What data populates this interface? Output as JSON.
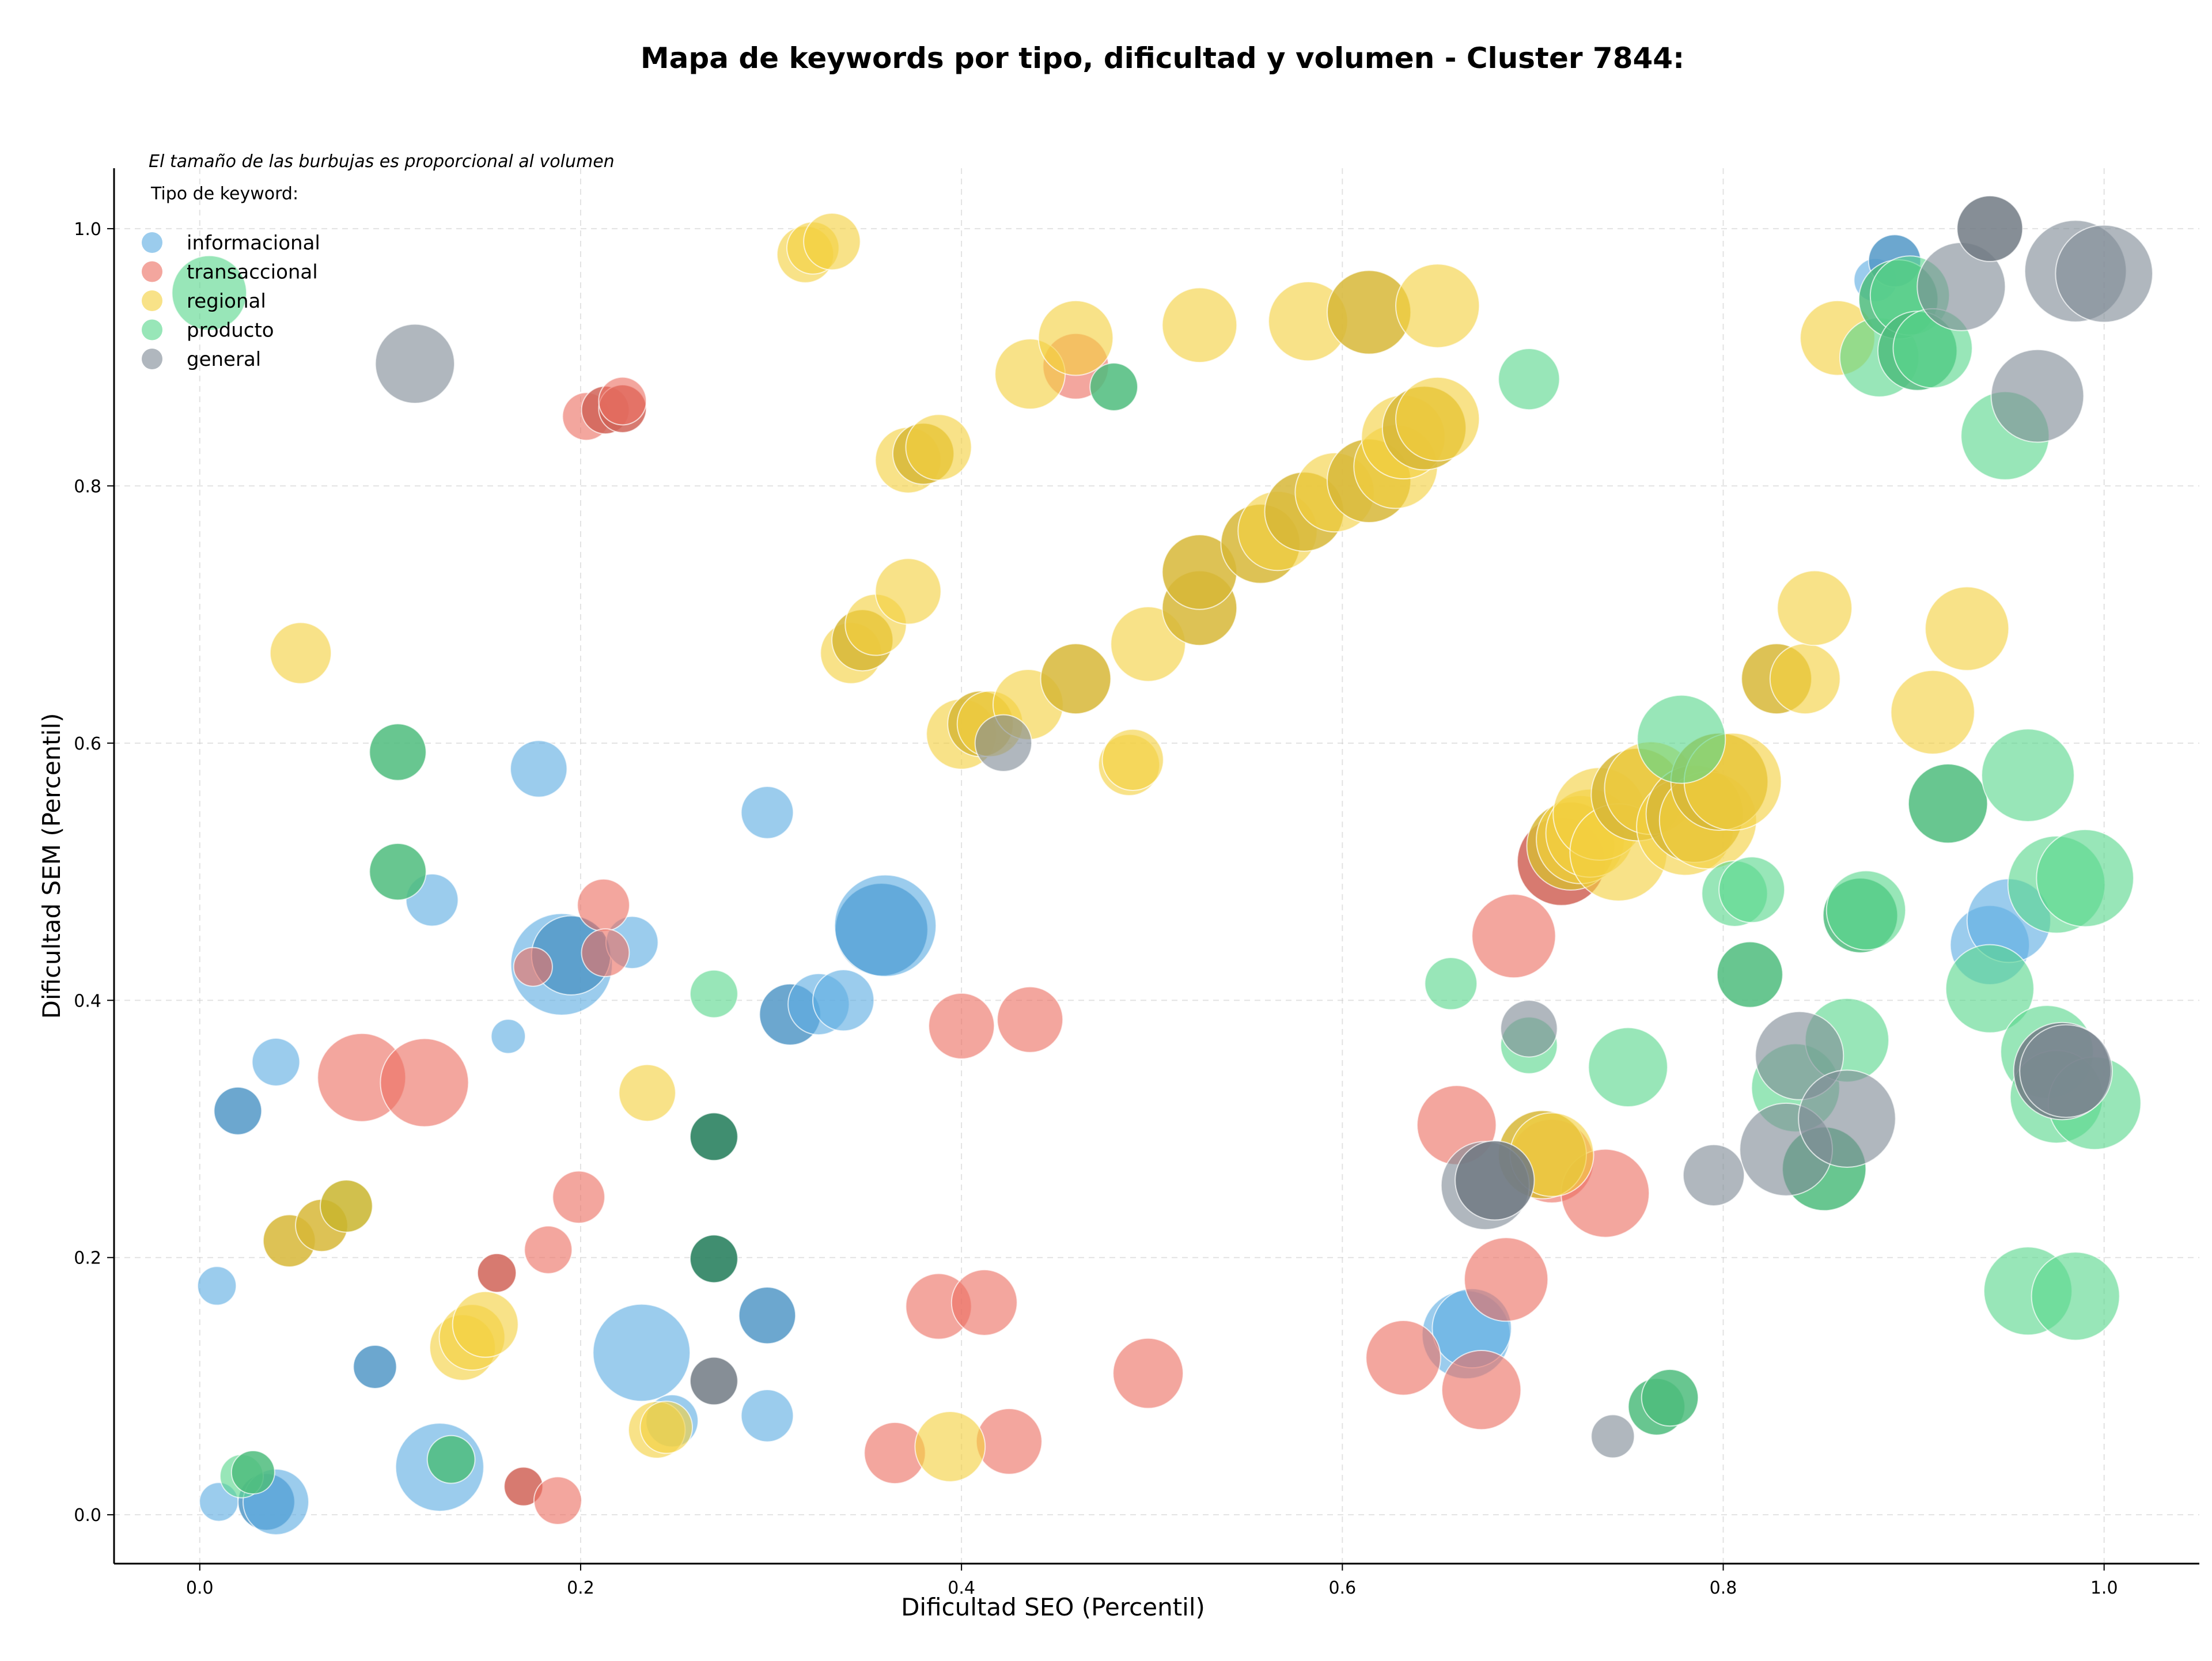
{
  "chart_data": {
    "type": "scatter",
    "title": "Mapa de keywords por tipo, dificultad y volumen - Cluster 7844:",
    "xlabel": "Dificultad SEO (Percentil)",
    "ylabel": "Dificultad SEM (Percentil)",
    "xlim": [
      -0.045,
      1.05
    ],
    "ylim": [
      -0.038,
      1.047
    ],
    "xticks": [
      "0.0",
      "0.2",
      "0.4",
      "0.6",
      "0.8",
      "1.0"
    ],
    "yticks": [
      "0.0",
      "0.2",
      "0.4",
      "0.6",
      "0.8",
      "1.0"
    ],
    "grid": true,
    "legend_position": "top-left",
    "note": "El tamaño de las burbujas es proporcional al volumen",
    "legend_title": "Tipo de keyword:",
    "series": [
      {
        "name": "informacional",
        "color": "#5dade2",
        "points": [
          {
            "x": 0.01,
            "y": 0.01,
            "s": 0.2
          },
          {
            "x": 0.009,
            "y": 0.178,
            "s": 0.2
          },
          {
            "x": 0.02,
            "y": 0.314,
            "s": 0.3,
            "dark": true
          },
          {
            "x": 0.04,
            "y": 0.352,
            "s": 0.3
          },
          {
            "x": 0.035,
            "y": 0.01,
            "s": 0.4,
            "dark": true
          },
          {
            "x": 0.04,
            "y": 0.01,
            "s": 0.5
          },
          {
            "x": 0.092,
            "y": 0.115,
            "s": 0.25,
            "dark": true
          },
          {
            "x": 0.122,
            "y": 0.478,
            "s": 0.35
          },
          {
            "x": 0.126,
            "y": 0.037,
            "s": 0.75
          },
          {
            "x": 0.162,
            "y": 0.372,
            "s": 0.15
          },
          {
            "x": 0.178,
            "y": 0.58,
            "s": 0.4
          },
          {
            "x": 0.19,
            "y": 0.428,
            "s": 0.9
          },
          {
            "x": 0.195,
            "y": 0.435,
            "s": 0.65,
            "dark": true
          },
          {
            "x": 0.227,
            "y": 0.445,
            "s": 0.35
          },
          {
            "x": 0.232,
            "y": 0.126,
            "s": 0.85
          },
          {
            "x": 0.248,
            "y": 0.073,
            "s": 0.35
          },
          {
            "x": 0.298,
            "y": 0.155,
            "s": 0.4,
            "dark": true
          },
          {
            "x": 0.298,
            "y": 0.546,
            "s": 0.35
          },
          {
            "x": 0.298,
            "y": 0.077,
            "s": 0.35
          },
          {
            "x": 0.31,
            "y": 0.389,
            "s": 0.45,
            "dark": true
          },
          {
            "x": 0.325,
            "y": 0.397,
            "s": 0.45
          },
          {
            "x": 0.338,
            "y": 0.4,
            "s": 0.45
          },
          {
            "x": 0.358,
            "y": 0.455,
            "s": 0.8,
            "dark": true
          },
          {
            "x": 0.36,
            "y": 0.458,
            "s": 0.9
          },
          {
            "x": 0.665,
            "y": 0.14,
            "s": 0.75
          },
          {
            "x": 0.668,
            "y": 0.145,
            "s": 0.65
          },
          {
            "x": 0.88,
            "y": 0.96,
            "s": 0.25
          },
          {
            "x": 0.89,
            "y": 0.975,
            "s": 0.35,
            "dark": true
          },
          {
            "x": 0.94,
            "y": 0.443,
            "s": 0.65
          },
          {
            "x": 0.95,
            "y": 0.462,
            "s": 0.7
          }
        ]
      },
      {
        "name": "transaccional",
        "color": "#ec7063",
        "points": [
          {
            "x": 0.085,
            "y": 0.34,
            "s": 0.75
          },
          {
            "x": 0.118,
            "y": 0.336,
            "s": 0.75
          },
          {
            "x": 0.156,
            "y": 0.188,
            "s": 0.2,
            "dark": true
          },
          {
            "x": 0.17,
            "y": 0.022,
            "s": 0.2,
            "dark": true
          },
          {
            "x": 0.175,
            "y": 0.426,
            "s": 0.2
          },
          {
            "x": 0.183,
            "y": 0.206,
            "s": 0.3
          },
          {
            "x": 0.188,
            "y": 0.011,
            "s": 0.3
          },
          {
            "x": 0.199,
            "y": 0.247,
            "s": 0.35
          },
          {
            "x": 0.203,
            "y": 0.854,
            "s": 0.3
          },
          {
            "x": 0.212,
            "y": 0.474,
            "s": 0.35
          },
          {
            "x": 0.213,
            "y": 0.437,
            "s": 0.3
          },
          {
            "x": 0.213,
            "y": 0.859,
            "s": 0.3,
            "dark": true
          },
          {
            "x": 0.222,
            "y": 0.86,
            "s": 0.3,
            "dark": true
          },
          {
            "x": 0.222,
            "y": 0.866,
            "s": 0.3
          },
          {
            "x": 0.365,
            "y": 0.048,
            "s": 0.45
          },
          {
            "x": 0.388,
            "y": 0.162,
            "s": 0.5
          },
          {
            "x": 0.4,
            "y": 0.38,
            "s": 0.5
          },
          {
            "x": 0.412,
            "y": 0.165,
            "s": 0.5
          },
          {
            "x": 0.425,
            "y": 0.057,
            "s": 0.5
          },
          {
            "x": 0.436,
            "y": 0.385,
            "s": 0.5
          },
          {
            "x": 0.46,
            "y": 0.893,
            "s": 0.5
          },
          {
            "x": 0.498,
            "y": 0.11,
            "s": 0.55
          },
          {
            "x": 0.632,
            "y": 0.122,
            "s": 0.6
          },
          {
            "x": 0.66,
            "y": 0.303,
            "s": 0.65
          },
          {
            "x": 0.673,
            "y": 0.097,
            "s": 0.65
          },
          {
            "x": 0.686,
            "y": 0.183,
            "s": 0.7
          },
          {
            "x": 0.69,
            "y": 0.45,
            "s": 0.7
          },
          {
            "x": 0.71,
            "y": 0.275,
            "s": 0.7
          },
          {
            "x": 0.715,
            "y": 0.508,
            "s": 0.75,
            "dark": true
          },
          {
            "x": 0.738,
            "y": 0.25,
            "s": 0.75
          }
        ]
      },
      {
        "name": "regional",
        "color": "#f4d03f",
        "points": [
          {
            "x": 0.047,
            "y": 0.213,
            "s": 0.35,
            "dark": true
          },
          {
            "x": 0.053,
            "y": 0.67,
            "s": 0.45
          },
          {
            "x": 0.064,
            "y": 0.225,
            "s": 0.35,
            "dark": true
          },
          {
            "x": 0.077,
            "y": 0.24,
            "s": 0.35,
            "olive": true
          },
          {
            "x": 0.138,
            "y": 0.13,
            "s": 0.5
          },
          {
            "x": 0.143,
            "y": 0.138,
            "s": 0.5
          },
          {
            "x": 0.15,
            "y": 0.148,
            "s": 0.5
          },
          {
            "x": 0.235,
            "y": 0.328,
            "s": 0.4
          },
          {
            "x": 0.24,
            "y": 0.066,
            "s": 0.4
          },
          {
            "x": 0.245,
            "y": 0.068,
            "s": 0.35
          },
          {
            "x": 0.318,
            "y": 0.98,
            "s": 0.4
          },
          {
            "x": 0.322,
            "y": 0.985,
            "s": 0.35
          },
          {
            "x": 0.332,
            "y": 0.99,
            "s": 0.4
          },
          {
            "x": 0.342,
            "y": 0.67,
            "s": 0.45
          },
          {
            "x": 0.348,
            "y": 0.68,
            "s": 0.45,
            "dark": true
          },
          {
            "x": 0.355,
            "y": 0.692,
            "s": 0.45
          },
          {
            "x": 0.372,
            "y": 0.718,
            "s": 0.5
          },
          {
            "x": 0.372,
            "y": 0.82,
            "s": 0.5
          },
          {
            "x": 0.38,
            "y": 0.825,
            "s": 0.45,
            "dark": true
          },
          {
            "x": 0.388,
            "y": 0.83,
            "s": 0.5
          },
          {
            "x": 0.394,
            "y": 0.053,
            "s": 0.55
          },
          {
            "x": 0.4,
            "y": 0.607,
            "s": 0.55
          },
          {
            "x": 0.41,
            "y": 0.615,
            "s": 0.5,
            "dark": true
          },
          {
            "x": 0.415,
            "y": 0.615,
            "s": 0.5
          },
          {
            "x": 0.435,
            "y": 0.63,
            "s": 0.55
          },
          {
            "x": 0.436,
            "y": 0.887,
            "s": 0.55
          },
          {
            "x": 0.46,
            "y": 0.65,
            "s": 0.55,
            "dark": true
          },
          {
            "x": 0.46,
            "y": 0.915,
            "s": 0.6
          },
          {
            "x": 0.488,
            "y": 0.583,
            "s": 0.45
          },
          {
            "x": 0.49,
            "y": 0.587,
            "s": 0.45
          },
          {
            "x": 0.498,
            "y": 0.677,
            "s": 0.6
          },
          {
            "x": 0.525,
            "y": 0.705,
            "s": 0.6,
            "dark": true
          },
          {
            "x": 0.525,
            "y": 0.733,
            "s": 0.6,
            "dark": true
          },
          {
            "x": 0.525,
            "y": 0.925,
            "s": 0.6
          },
          {
            "x": 0.557,
            "y": 0.755,
            "s": 0.65,
            "dark": true
          },
          {
            "x": 0.566,
            "y": 0.765,
            "s": 0.65
          },
          {
            "x": 0.58,
            "y": 0.78,
            "s": 0.65,
            "dark": true
          },
          {
            "x": 0.582,
            "y": 0.928,
            "s": 0.65
          },
          {
            "x": 0.596,
            "y": 0.795,
            "s": 0.65
          },
          {
            "x": 0.614,
            "y": 0.804,
            "s": 0.7,
            "dark": true
          },
          {
            "x": 0.614,
            "y": 0.935,
            "s": 0.7,
            "dark": true
          },
          {
            "x": 0.628,
            "y": 0.815,
            "s": 0.7
          },
          {
            "x": 0.632,
            "y": 0.838,
            "s": 0.7
          },
          {
            "x": 0.643,
            "y": 0.845,
            "s": 0.7,
            "dark": true
          },
          {
            "x": 0.65,
            "y": 0.852,
            "s": 0.7
          },
          {
            "x": 0.65,
            "y": 0.94,
            "s": 0.7
          },
          {
            "x": 0.705,
            "y": 0.28,
            "s": 0.75,
            "dark": true
          },
          {
            "x": 0.71,
            "y": 0.28,
            "s": 0.7
          },
          {
            "x": 0.72,
            "y": 0.52,
            "s": 0.75,
            "dark": true
          },
          {
            "x": 0.725,
            "y": 0.525,
            "s": 0.75
          },
          {
            "x": 0.73,
            "y": 0.53,
            "s": 0.75
          },
          {
            "x": 0.735,
            "y": 0.545,
            "s": 0.8
          },
          {
            "x": 0.745,
            "y": 0.515,
            "s": 0.85
          },
          {
            "x": 0.755,
            "y": 0.56,
            "s": 0.8,
            "dark": true
          },
          {
            "x": 0.762,
            "y": 0.565,
            "s": 0.8
          },
          {
            "x": 0.78,
            "y": 0.535,
            "s": 0.85
          },
          {
            "x": 0.785,
            "y": 0.545,
            "s": 0.85,
            "dark": true
          },
          {
            "x": 0.792,
            "y": 0.54,
            "s": 0.85
          },
          {
            "x": 0.798,
            "y": 0.57,
            "s": 0.85,
            "dark": true
          },
          {
            "x": 0.805,
            "y": 0.57,
            "s": 0.85
          },
          {
            "x": 0.828,
            "y": 0.65,
            "s": 0.55,
            "dark": true
          },
          {
            "x": 0.843,
            "y": 0.65,
            "s": 0.55
          },
          {
            "x": 0.848,
            "y": 0.705,
            "s": 0.6
          },
          {
            "x": 0.86,
            "y": 0.915,
            "s": 0.6
          },
          {
            "x": 0.91,
            "y": 0.624,
            "s": 0.7
          },
          {
            "x": 0.928,
            "y": 0.689,
            "s": 0.7
          }
        ]
      },
      {
        "name": "producto",
        "color": "#58d68d",
        "points": [
          {
            "x": 0.005,
            "y": 0.95,
            "s": 0.6
          },
          {
            "x": 0.022,
            "y": 0.03,
            "s": 0.25
          },
          {
            "x": 0.028,
            "y": 0.033,
            "s": 0.25,
            "dark": true
          },
          {
            "x": 0.104,
            "y": 0.593,
            "s": 0.4,
            "dark": true
          },
          {
            "x": 0.104,
            "y": 0.5,
            "s": 0.4,
            "dark": true
          },
          {
            "x": 0.132,
            "y": 0.043,
            "s": 0.3,
            "dark": true
          },
          {
            "x": 0.27,
            "y": 0.405,
            "s": 0.3
          },
          {
            "x": 0.27,
            "y": 0.294,
            "s": 0.3,
            "teal": true
          },
          {
            "x": 0.27,
            "y": 0.199,
            "s": 0.3,
            "teal": true
          },
          {
            "x": 0.48,
            "y": 0.877,
            "s": 0.3,
            "dark": true
          },
          {
            "x": 0.657,
            "y": 0.413,
            "s": 0.35
          },
          {
            "x": 0.698,
            "y": 0.365,
            "s": 0.4
          },
          {
            "x": 0.698,
            "y": 0.883,
            "s": 0.45
          },
          {
            "x": 0.75,
            "y": 0.348,
            "s": 0.65
          },
          {
            "x": 0.765,
            "y": 0.084,
            "s": 0.4,
            "dark": true
          },
          {
            "x": 0.772,
            "y": 0.091,
            "s": 0.4,
            "dark": true
          },
          {
            "x": 0.778,
            "y": 0.603,
            "s": 0.75
          },
          {
            "x": 0.806,
            "y": 0.483,
            "s": 0.5
          },
          {
            "x": 0.814,
            "y": 0.42,
            "s": 0.5,
            "dark": true
          },
          {
            "x": 0.815,
            "y": 0.486,
            "s": 0.5
          },
          {
            "x": 0.838,
            "y": 0.332,
            "s": 0.75
          },
          {
            "x": 0.853,
            "y": 0.269,
            "s": 0.7,
            "dark": true
          },
          {
            "x": 0.865,
            "y": 0.369,
            "s": 0.7
          },
          {
            "x": 0.872,
            "y": 0.466,
            "s": 0.6,
            "dark": true
          },
          {
            "x": 0.875,
            "y": 0.47,
            "s": 0.65
          },
          {
            "x": 0.882,
            "y": 0.9,
            "s": 0.65
          },
          {
            "x": 0.892,
            "y": 0.945,
            "s": 0.65,
            "dark": true
          },
          {
            "x": 0.898,
            "y": 0.948,
            "s": 0.65
          },
          {
            "x": 0.902,
            "y": 0.905,
            "s": 0.65,
            "dark": true
          },
          {
            "x": 0.91,
            "y": 0.907,
            "s": 0.65
          },
          {
            "x": 0.918,
            "y": 0.553,
            "s": 0.65,
            "dark": true
          },
          {
            "x": 0.94,
            "y": 0.409,
            "s": 0.75
          },
          {
            "x": 0.948,
            "y": 0.839,
            "s": 0.75
          },
          {
            "x": 0.96,
            "y": 0.575,
            "s": 0.8
          },
          {
            "x": 0.96,
            "y": 0.174,
            "s": 0.75
          },
          {
            "x": 0.97,
            "y": 0.36,
            "s": 0.8
          },
          {
            "x": 0.975,
            "y": 0.49,
            "s": 0.85
          },
          {
            "x": 0.975,
            "y": 0.325,
            "s": 0.8
          },
          {
            "x": 0.985,
            "y": 0.17,
            "s": 0.75
          },
          {
            "x": 0.99,
            "y": 0.495,
            "s": 0.85
          },
          {
            "x": 0.995,
            "y": 0.32,
            "s": 0.8
          }
        ]
      },
      {
        "name": "general",
        "color": "#808b96",
        "points": [
          {
            "x": 0.113,
            "y": 0.895,
            "s": 0.65
          },
          {
            "x": 0.27,
            "y": 0.104,
            "s": 0.3,
            "dark": true
          },
          {
            "x": 0.422,
            "y": 0.6,
            "s": 0.4
          },
          {
            "x": 0.698,
            "y": 0.378,
            "s": 0.4
          },
          {
            "x": 0.742,
            "y": 0.061,
            "s": 0.25
          },
          {
            "x": 0.675,
            "y": 0.256,
            "s": 0.75
          },
          {
            "x": 0.68,
            "y": 0.26,
            "s": 0.65,
            "dark": true
          },
          {
            "x": 0.795,
            "y": 0.264,
            "s": 0.45
          },
          {
            "x": 0.833,
            "y": 0.284,
            "s": 0.8
          },
          {
            "x": 0.84,
            "y": 0.357,
            "s": 0.75
          },
          {
            "x": 0.865,
            "y": 0.308,
            "s": 0.85
          },
          {
            "x": 0.925,
            "y": 0.955,
            "s": 0.75
          },
          {
            "x": 0.94,
            "y": 1.0,
            "s": 0.5,
            "dark": true
          },
          {
            "x": 0.965,
            "y": 0.87,
            "s": 0.8
          },
          {
            "x": 0.978,
            "y": 0.345,
            "s": 0.85,
            "dark": true
          },
          {
            "x": 0.98,
            "y": 0.345,
            "s": 0.8
          },
          {
            "x": 0.985,
            "y": 0.967,
            "s": 0.9
          },
          {
            "x": 1.0,
            "y": 0.965,
            "s": 0.85
          }
        ]
      }
    ]
  }
}
